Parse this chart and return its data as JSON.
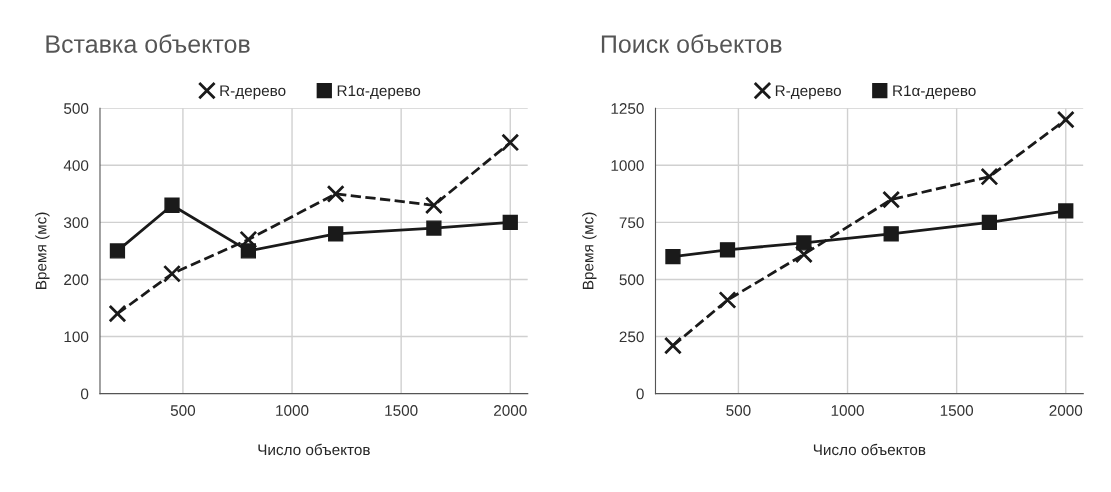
{
  "chart_data": [
    {
      "type": "line",
      "title": "Вставка объектов",
      "xlabel": "Число объектов",
      "ylabel": "Время (мс)",
      "x": [
        200,
        450,
        800,
        1200,
        1650,
        2000
      ],
      "xlim": [
        120,
        2080
      ],
      "xticks": [
        500,
        1000,
        1500,
        2000
      ],
      "ylim": [
        0,
        500
      ],
      "yticks": [
        0,
        100,
        200,
        300,
        400,
        500
      ],
      "grid": true,
      "legend": "top",
      "series": [
        {
          "name": "R-дерево",
          "color": "#1a1a1a",
          "marker": "cross",
          "line_style": "dashed",
          "values": [
            140,
            210,
            270,
            350,
            330,
            440
          ]
        },
        {
          "name": "R1α-дерево",
          "color": "#1a1a1a",
          "marker": "square",
          "line_style": "solid",
          "values": [
            250,
            330,
            250,
            280,
            290,
            300
          ]
        }
      ]
    },
    {
      "type": "line",
      "title": "Поиск объектов",
      "xlabel": "Число объектов",
      "ylabel": "Время (мс)",
      "x": [
        200,
        450,
        800,
        1200,
        1650,
        2000
      ],
      "xlim": [
        120,
        2080
      ],
      "xticks": [
        500,
        1000,
        1500,
        2000
      ],
      "ylim": [
        0,
        1250
      ],
      "yticks": [
        0,
        250,
        500,
        750,
        1000,
        1250
      ],
      "grid": true,
      "legend": "top",
      "series": [
        {
          "name": "R-дерево",
          "color": "#1a1a1a",
          "marker": "cross",
          "line_style": "dashed",
          "values": [
            210,
            410,
            610,
            850,
            950,
            1200
          ]
        },
        {
          "name": "R1α-дерево",
          "color": "#1a1a1a",
          "marker": "square",
          "line_style": "solid",
          "values": [
            600,
            630,
            660,
            700,
            750,
            800
          ]
        }
      ]
    }
  ]
}
